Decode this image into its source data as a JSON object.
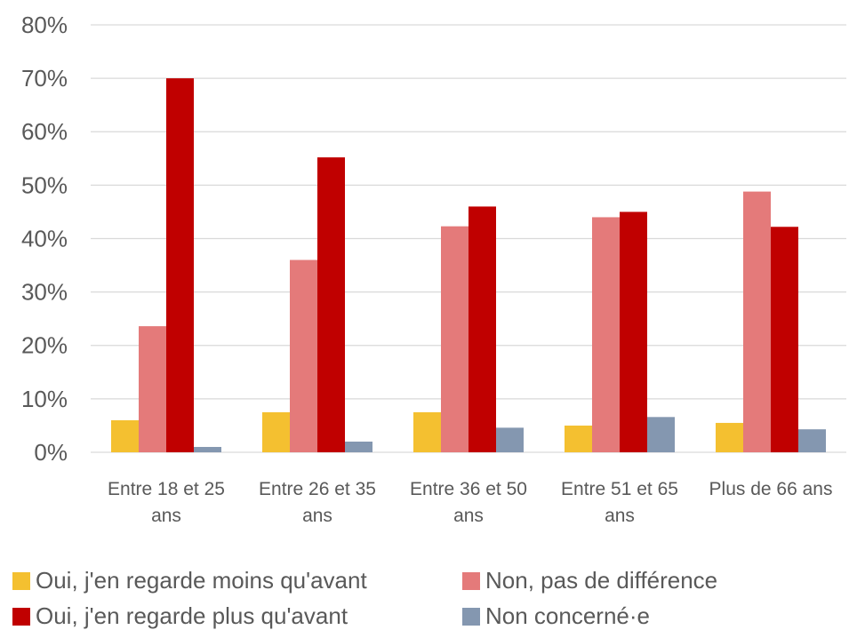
{
  "chart_data": {
    "type": "bar",
    "categories": [
      "Entre 18 et 25 ans",
      "Entre 26 et 35 ans",
      "Entre 36 et 50 ans",
      "Entre 51 et 65 ans",
      "Plus de 66 ans"
    ],
    "series": [
      {
        "name": "Oui, j'en regarde moins qu'avant",
        "color": "#f4c030",
        "values": [
          6,
          7.5,
          7.5,
          5,
          5.5
        ]
      },
      {
        "name": "Non, pas de différence",
        "color": "#e47a7a",
        "values": [
          23.6,
          36,
          42.3,
          44,
          48.8
        ]
      },
      {
        "name": "Oui, j'en regarde plus qu'avant",
        "color": "#c00000",
        "values": [
          70,
          55.2,
          46,
          45,
          42.2
        ]
      },
      {
        "name": "Non concerné·e",
        "color": "#8497b0",
        "values": [
          1,
          2,
          4.6,
          6.6,
          4.3
        ]
      }
    ],
    "ylim": [
      0,
      80
    ],
    "yticks": [
      {
        "value": 0,
        "label": "0%"
      },
      {
        "value": 10,
        "label": "10%"
      },
      {
        "value": 20,
        "label": "20%"
      },
      {
        "value": 30,
        "label": "30%"
      },
      {
        "value": 40,
        "label": "40%"
      },
      {
        "value": 50,
        "label": "50%"
      },
      {
        "value": 60,
        "label": "60%"
      },
      {
        "value": 70,
        "label": "70%"
      },
      {
        "value": 80,
        "label": "80%"
      }
    ],
    "grid": true,
    "legend": "bottom"
  }
}
